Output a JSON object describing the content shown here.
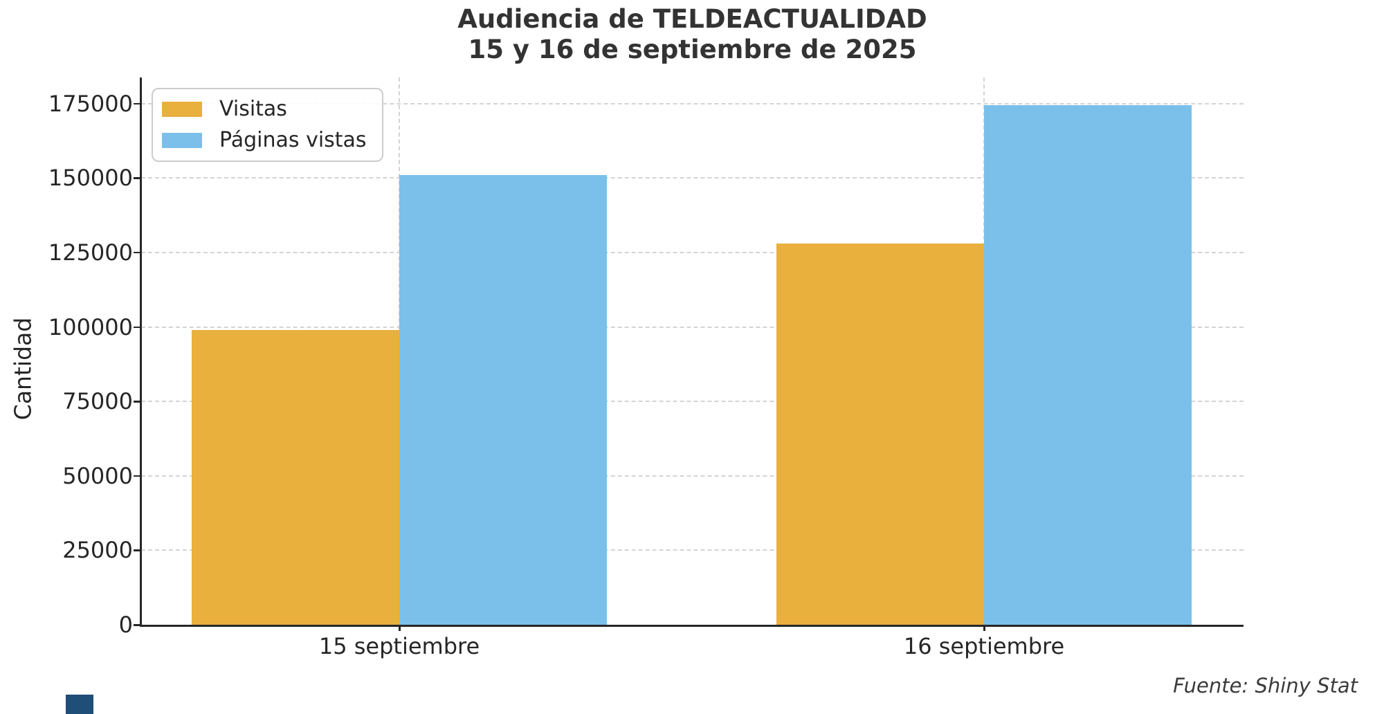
{
  "source_note": "Fuente: Shiny Stat",
  "colors": {
    "title": "#333333",
    "axis": "#262626",
    "grid": "#d4d4d4",
    "tick_label": "#262626",
    "legend_text": "#262626",
    "source": "#3b3b3b",
    "corner_logo_blue": "#1f4e79"
  },
  "chart_data": {
    "type": "bar",
    "title": "Audiencia de TELDEACTUALIDAD",
    "subtitle": "15 y 16 de septiembre de 2025",
    "xlabel": "",
    "ylabel": "Cantidad",
    "categories": [
      "15 septiembre",
      "16 septiembre"
    ],
    "series": [
      {
        "name": "Visitas",
        "color": "#E9B03D",
        "values": [
          99000,
          128000
        ]
      },
      {
        "name": "Páginas vistas",
        "color": "#7BC0EA",
        "values": [
          151000,
          174500
        ]
      }
    ],
    "ylim": [
      0,
      183750
    ],
    "yticks": [
      0,
      25000,
      50000,
      75000,
      100000,
      125000,
      150000,
      175000
    ],
    "grid": "dashed light-gray horizontal lines at y ticks and vertical lines at category centers",
    "legend_position": "upper left"
  }
}
